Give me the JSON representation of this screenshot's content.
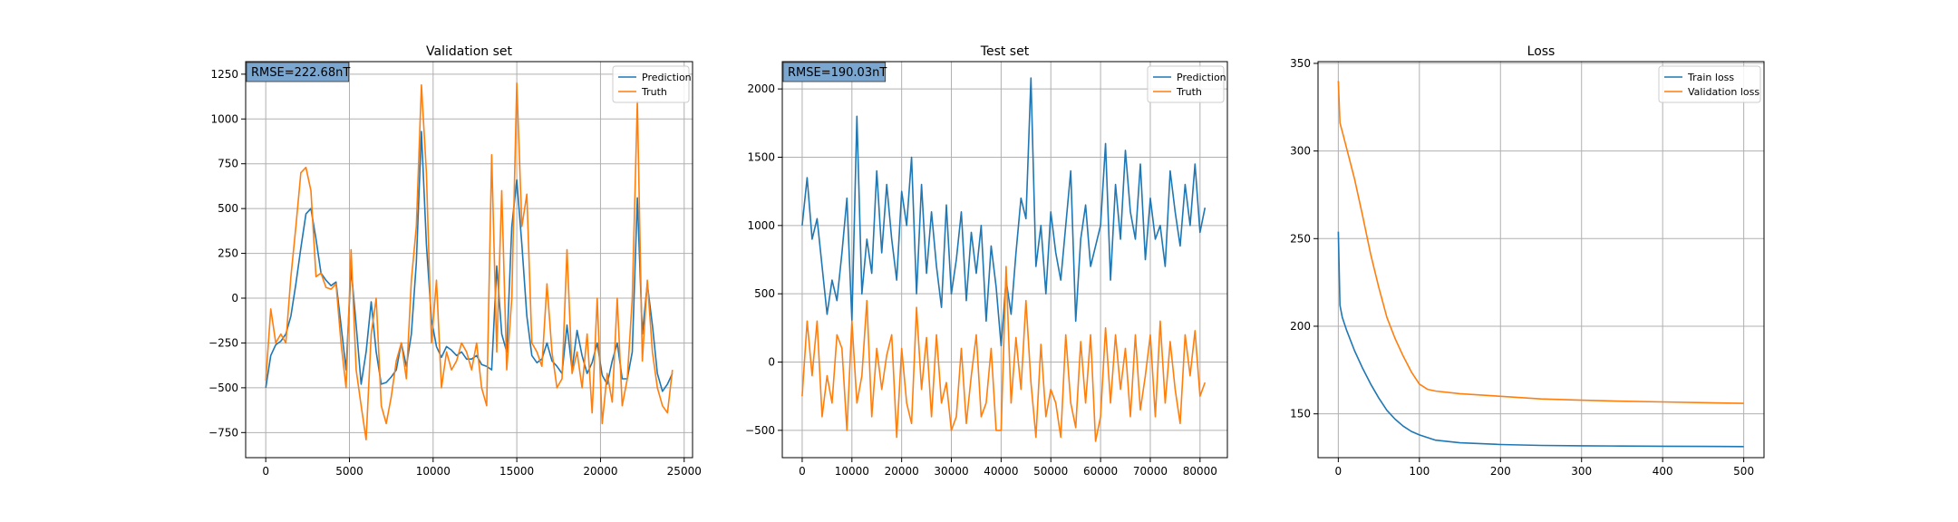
{
  "chart_data": [
    {
      "type": "line",
      "title": "Validation set",
      "xlabel": "",
      "ylabel": "",
      "xlim": [
        -1200,
        25500
      ],
      "ylim": [
        -890,
        1320
      ],
      "xticks": [
        0,
        5000,
        10000,
        15000,
        20000,
        25000
      ],
      "yticks": [
        -750,
        -500,
        -250,
        0,
        250,
        500,
        750,
        1000,
        1250
      ],
      "grid": true,
      "legend": "top-right",
      "annotation": "RMSE=222.68nT",
      "series": [
        {
          "name": "Prediction",
          "color": "#1f77b4",
          "x": [
            0,
            300,
            600,
            900,
            1200,
            1500,
            1800,
            2100,
            2400,
            2700,
            3000,
            3300,
            3600,
            3900,
            4200,
            4500,
            4800,
            5100,
            5400,
            5700,
            6000,
            6300,
            6600,
            6900,
            7200,
            7500,
            7800,
            8100,
            8400,
            8700,
            9000,
            9300,
            9600,
            9900,
            10200,
            10500,
            10800,
            11100,
            11400,
            11700,
            12000,
            12300,
            12600,
            12900,
            13200,
            13500,
            13800,
            14100,
            14400,
            14700,
            15000,
            15300,
            15600,
            15900,
            16200,
            16500,
            16800,
            17100,
            17400,
            17700,
            18000,
            18300,
            18600,
            18900,
            19200,
            19500,
            19800,
            20100,
            20400,
            20700,
            21000,
            21300,
            21600,
            21900,
            22200,
            22500,
            22800,
            23100,
            23400,
            23700,
            24000,
            24300
          ],
          "values": [
            -500,
            -320,
            -260,
            -240,
            -200,
            -100,
            80,
            280,
            470,
            500,
            330,
            140,
            100,
            70,
            90,
            -150,
            -400,
            170,
            -150,
            -480,
            -300,
            -20,
            -300,
            -480,
            -470,
            -440,
            -400,
            -250,
            -380,
            -200,
            200,
            930,
            300,
            -120,
            -270,
            -330,
            -270,
            -290,
            -320,
            -300,
            -340,
            -340,
            -320,
            -370,
            -380,
            -400,
            180,
            -200,
            -300,
            400,
            660,
            300,
            -100,
            -320,
            -360,
            -340,
            -250,
            -350,
            -380,
            -420,
            -150,
            -400,
            -180,
            -320,
            -420,
            -360,
            -250,
            -430,
            -480,
            -350,
            -250,
            -450,
            -450,
            -300,
            560,
            -200,
            80,
            -150,
            -420,
            -520,
            -480,
            -420
          ]
        },
        {
          "name": "Truth",
          "color": "#ff7f0e",
          "x": [
            0,
            300,
            600,
            900,
            1200,
            1500,
            1800,
            2100,
            2400,
            2700,
            3000,
            3300,
            3600,
            3900,
            4200,
            4500,
            4800,
            5100,
            5400,
            5700,
            6000,
            6300,
            6600,
            6900,
            7200,
            7500,
            7800,
            8100,
            8400,
            8700,
            9000,
            9300,
            9600,
            9900,
            10200,
            10500,
            10800,
            11100,
            11400,
            11700,
            12000,
            12300,
            12600,
            12900,
            13200,
            13500,
            13800,
            14100,
            14400,
            14700,
            15000,
            15300,
            15600,
            15900,
            16200,
            16500,
            16800,
            17100,
            17400,
            17700,
            18000,
            18300,
            18600,
            18900,
            19200,
            19500,
            19800,
            20100,
            20400,
            20700,
            21000,
            21300,
            21600,
            21900,
            22200,
            22500,
            22800,
            23100,
            23400,
            23700,
            24000,
            24300
          ],
          "values": [
            -460,
            -60,
            -250,
            -200,
            -250,
            120,
            400,
            700,
            730,
            600,
            120,
            140,
            60,
            50,
            80,
            -250,
            -500,
            270,
            -400,
            -600,
            -790,
            -200,
            0,
            -600,
            -700,
            -550,
            -350,
            -250,
            -450,
            100,
            400,
            1190,
            700,
            -250,
            100,
            -500,
            -300,
            -400,
            -350,
            -250,
            -300,
            -400,
            -250,
            -500,
            -600,
            800,
            -300,
            600,
            -400,
            0,
            1200,
            400,
            580,
            -250,
            -300,
            -380,
            80,
            -300,
            -500,
            -450,
            270,
            -420,
            -300,
            -500,
            -200,
            -640,
            0,
            -700,
            -420,
            -580,
            0,
            -600,
            -450,
            0,
            1100,
            -350,
            100,
            -300,
            -500,
            -600,
            -640,
            -400
          ]
        }
      ]
    },
    {
      "type": "line",
      "title": "Test set",
      "xlabel": "",
      "ylabel": "",
      "xlim": [
        -4000,
        85500
      ],
      "ylim": [
        -700,
        2200
      ],
      "xticks": [
        0,
        10000,
        20000,
        30000,
        40000,
        50000,
        60000,
        70000,
        80000
      ],
      "yticks": [
        -500,
        0,
        500,
        1000,
        1500,
        2000
      ],
      "grid": true,
      "legend": "top-right",
      "annotation": "RMSE=190.03nT",
      "series": [
        {
          "name": "Prediction",
          "color": "#1f77b4",
          "x": [
            0,
            1000,
            2000,
            3000,
            4000,
            5000,
            6000,
            7000,
            8000,
            9000,
            10000,
            11000,
            12000,
            13000,
            14000,
            15000,
            16000,
            17000,
            18000,
            19000,
            20000,
            21000,
            22000,
            23000,
            24000,
            25000,
            26000,
            27000,
            28000,
            29000,
            30000,
            31000,
            32000,
            33000,
            34000,
            35000,
            36000,
            37000,
            38000,
            39000,
            40000,
            41000,
            42000,
            43000,
            44000,
            45000,
            46000,
            47000,
            48000,
            49000,
            50000,
            51000,
            52000,
            53000,
            54000,
            55000,
            56000,
            57000,
            58000,
            59000,
            60000,
            61000,
            62000,
            63000,
            64000,
            65000,
            66000,
            67000,
            68000,
            69000,
            70000,
            71000,
            72000,
            73000,
            74000,
            75000,
            76000,
            77000,
            78000,
            79000,
            80000,
            81000
          ],
          "values": [
            1000,
            1350,
            900,
            1050,
            700,
            350,
            600,
            450,
            800,
            1200,
            300,
            1800,
            500,
            900,
            650,
            1400,
            800,
            1300,
            900,
            600,
            1250,
            1000,
            1500,
            500,
            1300,
            650,
            1100,
            700,
            400,
            1150,
            500,
            750,
            1100,
            450,
            950,
            650,
            1000,
            300,
            850,
            550,
            120,
            600,
            350,
            800,
            1200,
            1050,
            2080,
            700,
            1000,
            500,
            1100,
            800,
            600,
            1000,
            1400,
            300,
            900,
            1150,
            700,
            850,
            1000,
            1600,
            600,
            1300,
            900,
            1550,
            1100,
            900,
            1450,
            750,
            1200,
            900,
            1000,
            700,
            1400,
            1100,
            850,
            1300,
            1000,
            1450,
            950,
            1130
          ]
        },
        {
          "name": "Truth",
          "color": "#ff7f0e",
          "x": [
            0,
            1000,
            2000,
            3000,
            4000,
            5000,
            6000,
            7000,
            8000,
            9000,
            10000,
            11000,
            12000,
            13000,
            14000,
            15000,
            16000,
            17000,
            18000,
            19000,
            20000,
            21000,
            22000,
            23000,
            24000,
            25000,
            26000,
            27000,
            28000,
            29000,
            30000,
            31000,
            32000,
            33000,
            34000,
            35000,
            36000,
            37000,
            38000,
            39000,
            40000,
            41000,
            42000,
            43000,
            44000,
            45000,
            46000,
            47000,
            48000,
            49000,
            50000,
            51000,
            52000,
            53000,
            54000,
            55000,
            56000,
            57000,
            58000,
            59000,
            60000,
            61000,
            62000,
            63000,
            64000,
            65000,
            66000,
            67000,
            68000,
            69000,
            70000,
            71000,
            72000,
            73000,
            74000,
            75000,
            76000,
            77000,
            78000,
            79000,
            80000,
            81000
          ],
          "values": [
            -250,
            300,
            -100,
            300,
            -400,
            -100,
            -300,
            200,
            100,
            -500,
            300,
            -300,
            -100,
            450,
            -400,
            100,
            -200,
            50,
            200,
            -550,
            100,
            -300,
            -450,
            400,
            -200,
            180,
            -400,
            200,
            -300,
            -150,
            -500,
            -400,
            100,
            -450,
            -100,
            200,
            -400,
            -300,
            100,
            -500,
            -500,
            700,
            -300,
            180,
            -200,
            450,
            -150,
            -550,
            130,
            -400,
            -200,
            -300,
            -550,
            200,
            -300,
            -480,
            150,
            -300,
            200,
            -580,
            -400,
            250,
            -300,
            200,
            -200,
            100,
            -400,
            200,
            -350,
            -100,
            200,
            -400,
            300,
            -300,
            150,
            -200,
            -450,
            200,
            -100,
            230,
            -250,
            -150
          ]
        }
      ]
    },
    {
      "type": "line",
      "title": "Loss",
      "xlabel": "",
      "ylabel": "",
      "xlim": [
        -25,
        525
      ],
      "ylim": [
        125,
        351
      ],
      "xticks": [
        0,
        100,
        200,
        300,
        400,
        500
      ],
      "yticks": [
        150,
        200,
        250,
        300,
        350
      ],
      "grid": true,
      "legend": "top-right",
      "annotation": "",
      "series": [
        {
          "name": "Train loss",
          "color": "#1f77b4",
          "x": [
            0,
            2,
            5,
            10,
            20,
            30,
            40,
            50,
            60,
            70,
            80,
            90,
            100,
            120,
            150,
            200,
            250,
            300,
            350,
            400,
            450,
            500
          ],
          "values": [
            254,
            212,
            205,
            198,
            186,
            176,
            167,
            159,
            152,
            147,
            143,
            140,
            138,
            135,
            133.5,
            132.5,
            132,
            131.8,
            131.6,
            131.5,
            131.4,
            131.3
          ]
        },
        {
          "name": "Validation loss",
          "color": "#ff7f0e",
          "x": [
            0,
            2,
            5,
            10,
            20,
            30,
            40,
            50,
            60,
            70,
            80,
            90,
            100,
            110,
            120,
            150,
            200,
            250,
            300,
            350,
            400,
            450,
            500
          ],
          "values": [
            340,
            316,
            311,
            302,
            284,
            263,
            241,
            222,
            205,
            193,
            183,
            174,
            167,
            164,
            163,
            161.5,
            160,
            158.5,
            157.8,
            157.2,
            156.8,
            156.4,
            156
          ]
        }
      ]
    }
  ]
}
